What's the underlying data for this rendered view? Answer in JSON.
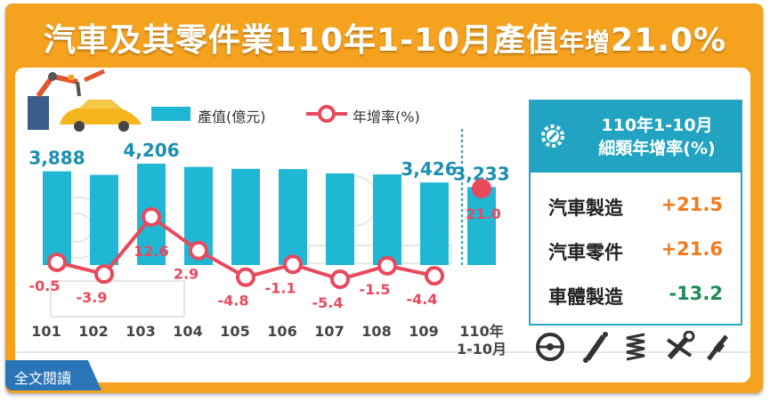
{
  "title": {
    "main": "汽車及其零件業110年1-10月產值",
    "small": "年增",
    "rate": "21.0%"
  },
  "legend": {
    "bar": "產值(億元)",
    "line": "年增率(%)"
  },
  "colors": {
    "frame": "#f5a21f",
    "bar": "#20b7d4",
    "line": "#e8495c",
    "accent": "#21a3c1",
    "positive": "#f07b1d",
    "negative": "#1d8b57"
  },
  "side_box": {
    "title_line1": "110年1-10月",
    "title_line2": "細類年增率(%)",
    "rows": [
      {
        "name": "汽車製造",
        "value": "+21.5",
        "color": "#f07b1d"
      },
      {
        "name": "汽車零件",
        "value": "+21.6",
        "color": "#f07b1d"
      },
      {
        "name": "車體製造",
        "value": "-13.2",
        "color": "#1d8b57"
      }
    ],
    "icons": [
      "steering-wheel-icon",
      "shock-absorber-icon",
      "coil-spring-icon",
      "wrench-icon",
      "spark-plug-icon"
    ]
  },
  "read_more": "全文閱讀",
  "chart_data": {
    "type": "bar",
    "categories": [
      "101",
      "102",
      "103",
      "104",
      "105",
      "106",
      "107",
      "108",
      "109",
      "110年\n1-10月"
    ],
    "series": [
      {
        "name": "產值(億元)",
        "type": "bar",
        "values": [
          3888,
          3740,
          4206,
          4070,
          3990,
          3980,
          3800,
          3760,
          3426,
          3233
        ]
      },
      {
        "name": "年增率(%)",
        "type": "line",
        "values": [
          -0.5,
          -3.9,
          12.6,
          2.9,
          -4.8,
          -1.1,
          -5.4,
          -1.5,
          -4.4,
          21.0
        ]
      }
    ],
    "bar_labels": [
      "3,888",
      "",
      "4,206",
      "",
      "",
      "",
      "",
      "",
      "3,426",
      "3,233"
    ],
    "line_labels": [
      "-0.5",
      "-3.9",
      "12.6",
      "2.9",
      "-4.8",
      "-1.1",
      "-5.4",
      "-1.5",
      "-4.4",
      "21.0"
    ],
    "y_range_bar": [
      0,
      4400
    ],
    "grid": false
  }
}
